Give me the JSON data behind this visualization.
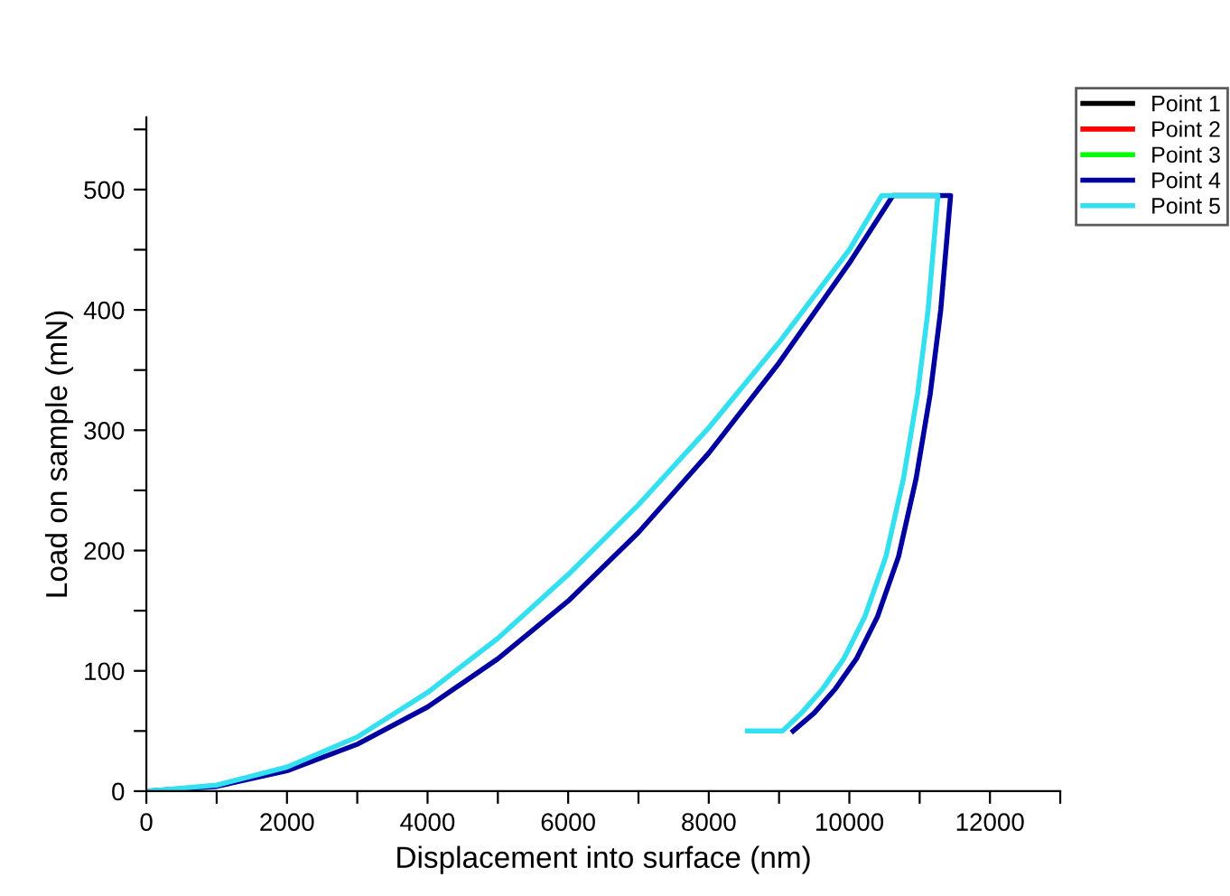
{
  "chart_data": {
    "type": "line",
    "xlabel": "Displacement into surface (nm)",
    "ylabel": "Load on sample (mN)",
    "xlim": [
      0,
      13000
    ],
    "ylim": [
      0,
      560
    ],
    "xticks": [
      0,
      {
        "value": 1000,
        "label": null
      },
      2000,
      {
        "value": 3000,
        "label": null
      },
      4000,
      {
        "value": 5000,
        "label": null
      },
      6000,
      {
        "value": 7000,
        "label": null
      },
      8000,
      {
        "value": 9000,
        "label": null
      },
      10000,
      {
        "value": 11000,
        "label": null
      },
      12000,
      {
        "value": 13000,
        "label": null
      }
    ],
    "yticks": [
      0,
      {
        "value": 50,
        "label": null
      },
      100,
      {
        "value": 150,
        "label": null
      },
      200,
      {
        "value": 250,
        "label": null
      },
      300,
      {
        "value": 350,
        "label": null
      },
      400,
      {
        "value": 450,
        "label": null
      },
      500,
      {
        "value": 550,
        "label": null
      }
    ],
    "grid": false,
    "legend": "top right",
    "marker": "none",
    "line_style": "solid",
    "series": [
      {
        "name": "Point 1",
        "color": "#000000"
      },
      {
        "name": "Point 2",
        "color": "#ff0000"
      },
      {
        "name": "Point 3",
        "color": "#00ff00"
      },
      {
        "name": "Point 4",
        "color": "#0000a0",
        "x": [
          0,
          1000,
          2000,
          3000,
          4000,
          5000,
          6000,
          7000,
          8000,
          9000,
          10000,
          10620,
          11440,
          11300,
          11150,
          10950,
          10700,
          10400,
          10100,
          9800,
          9500,
          9200
        ],
        "values": [
          0,
          4,
          17,
          39,
          70,
          110,
          158,
          215,
          281,
          356,
          439,
          495,
          495,
          400,
          330,
          260,
          195,
          145,
          110,
          85,
          65,
          50
        ]
      },
      {
        "name": "Point 5",
        "color": "#33e0f0",
        "x": [
          0,
          1000,
          2000,
          3000,
          4000,
          5000,
          6000,
          7000,
          8000,
          9000,
          10000,
          10460,
          11260,
          11120,
          10970,
          10770,
          10520,
          10220,
          9920,
          9620,
          9320,
          9050,
          8550
        ],
        "values": [
          0,
          5,
          20,
          45,
          82,
          127,
          180,
          238,
          302,
          373,
          450,
          495,
          495,
          400,
          330,
          260,
          195,
          145,
          110,
          85,
          65,
          50,
          50
        ]
      }
    ]
  }
}
